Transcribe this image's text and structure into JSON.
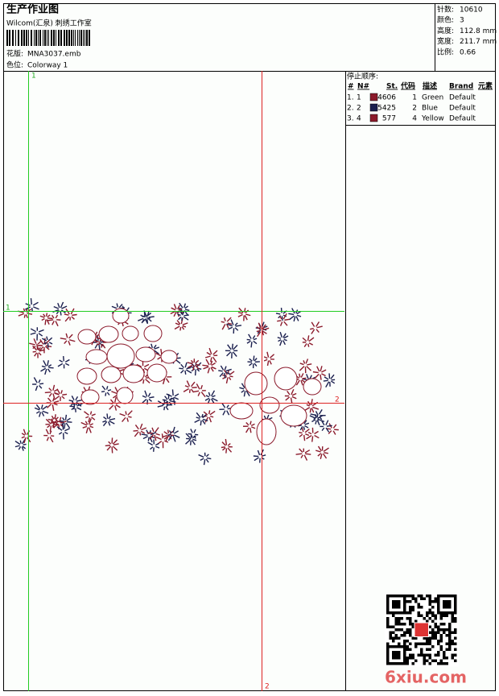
{
  "header": {
    "title": "生产作业图",
    "studio": "Wilcom(汇泉) 刺绣工作室",
    "design_label": "花版:",
    "design_file": "MNA3037.emb",
    "colorway_label": "色位:",
    "colorway": "Colorway 1"
  },
  "stats": [
    {
      "label": "针数:",
      "value": "10610"
    },
    {
      "label": "颜色:",
      "value": "3"
    },
    {
      "label": "高度:",
      "value": "112.8 mm"
    },
    {
      "label": "宽度:",
      "value": "211.7 mm"
    },
    {
      "label": "比例:",
      "value": "0.66"
    }
  ],
  "stop_sequence": {
    "title": "停止顺序:",
    "columns": [
      "#",
      "N#",
      "St.",
      "代码",
      "描述",
      "Brand",
      "元素"
    ],
    "rows": [
      {
        "index": "1.",
        "needle": "1",
        "color": "#8b1a2b",
        "stitches": "4606",
        "code": "1",
        "description": "Green",
        "brand": "Default"
      },
      {
        "index": "2.",
        "needle": "2",
        "color": "#1a1f4e",
        "stitches": "5425",
        "code": "2",
        "description": "Blue",
        "brand": "Default"
      },
      {
        "index": "3.",
        "needle": "4",
        "color": "#8b1a2b",
        "stitches": "577",
        "code": "4",
        "description": "Yellow",
        "brand": "Default"
      }
    ]
  },
  "guides": {
    "vertical_green": "1",
    "horizontal_green": "1",
    "vertical_red": "2",
    "horizontal_red": "2"
  },
  "watermark": "6xiu.com"
}
